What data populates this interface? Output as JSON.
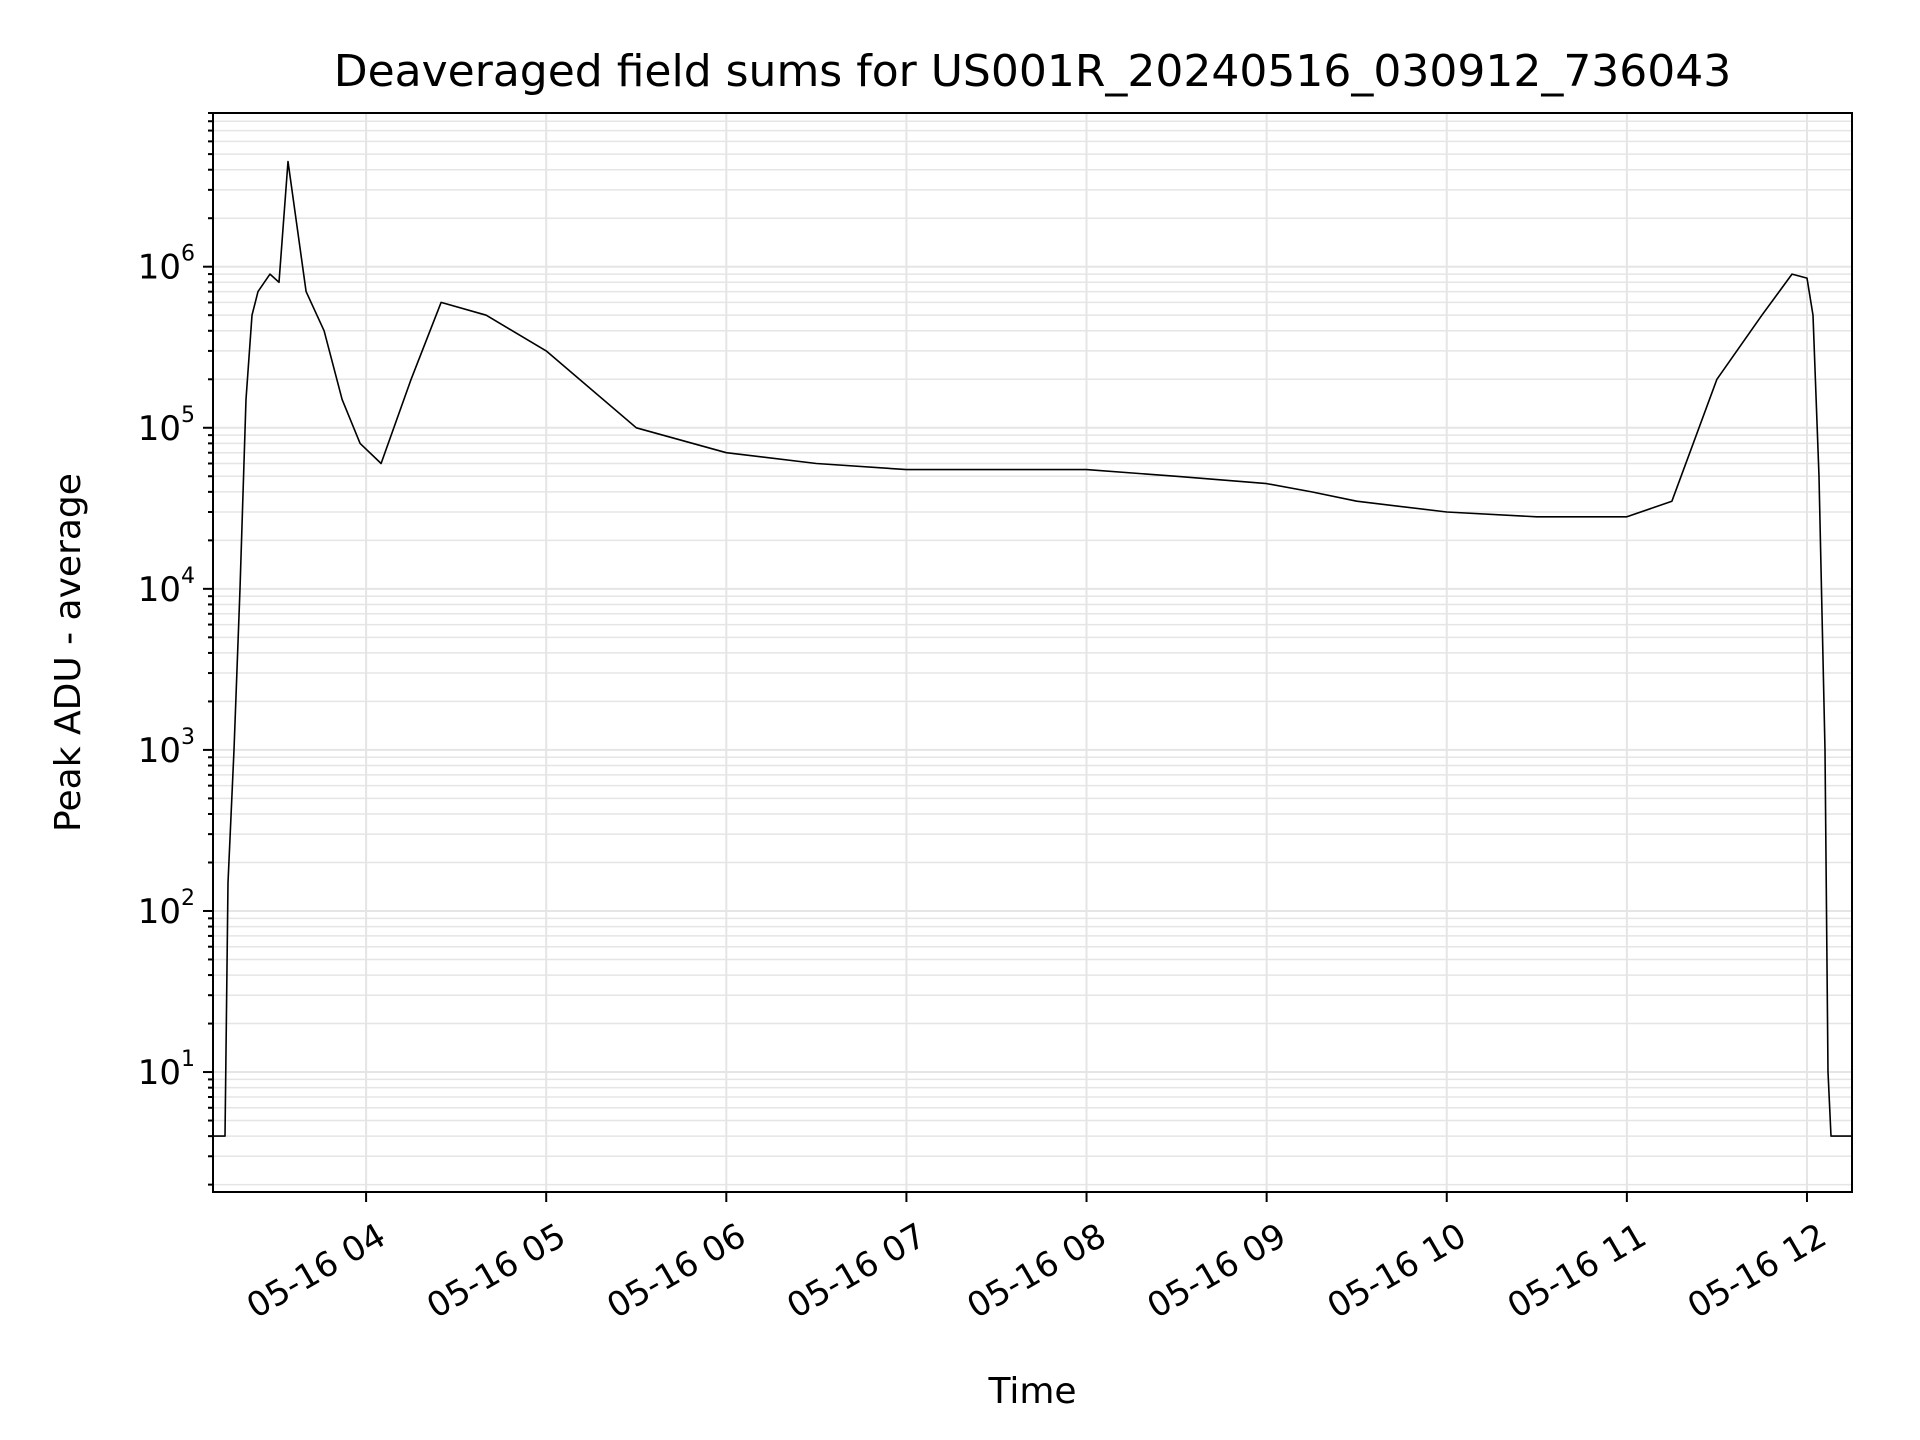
{
  "chart_data": {
    "type": "line",
    "title": "Deaveraged field sums for US001R_20240516_030912_736043",
    "xlabel": "Time",
    "ylabel": "Peak ADU - average",
    "y_scale": "log",
    "ylim": [
      1.8,
      9000000
    ],
    "xlim": [
      "05-16 03:09",
      "05-16 12:15"
    ],
    "x_ticks": [
      "05-16 04",
      "05-16 05",
      "05-16 06",
      "05-16 07",
      "05-16 08",
      "05-16 09",
      "05-16 10",
      "05-16 11",
      "05-16 12"
    ],
    "y_ticks": [
      {
        "base": "10",
        "exp": "1",
        "value": 10
      },
      {
        "base": "10",
        "exp": "2",
        "value": 100
      },
      {
        "base": "10",
        "exp": "3",
        "value": 1000
      },
      {
        "base": "10",
        "exp": "4",
        "value": 10000
      },
      {
        "base": "10",
        "exp": "5",
        "value": 100000
      },
      {
        "base": "10",
        "exp": "6",
        "value": 1000000
      }
    ],
    "grid": "major and minor",
    "line_color": "#000000",
    "grid_color": "#e5e5e5",
    "series": [
      {
        "x": [
          "05-16 03:09",
          "05-16 03:13",
          "05-16 03:14",
          "05-16 03:16",
          "05-16 03:18",
          "05-16 03:20",
          "05-16 03:22",
          "05-16 03:24",
          "05-16 03:28",
          "05-16 03:31",
          "05-16 03:34",
          "05-16 03:40",
          "05-16 03:46",
          "05-16 03:52",
          "05-16 03:58",
          "05-16 04:05",
          "05-16 04:15",
          "05-16 04:25",
          "05-16 04:40",
          "05-16 05:00",
          "05-16 05:30",
          "05-16 06:00",
          "05-16 06:30",
          "05-16 07:00",
          "05-16 07:30",
          "05-16 08:00",
          "05-16 08:30",
          "05-16 09:00",
          "05-16 09:15",
          "05-16 09:30",
          "05-16 10:00",
          "05-16 10:30",
          "05-16 11:00",
          "05-16 11:15",
          "05-16 11:30",
          "05-16 11:45",
          "05-16 11:55",
          "05-16 12:00",
          "05-16 12:02",
          "05-16 12:04",
          "05-16 12:06",
          "05-16 12:07",
          "05-16 12:08",
          "05-16 12:15"
        ],
        "y": [
          4,
          4,
          150,
          1000,
          10000,
          150000,
          500000,
          700000,
          900000,
          800000,
          4500000,
          700000,
          400000,
          150000,
          80000,
          60000,
          200000,
          600000,
          500000,
          300000,
          100000,
          70000,
          60000,
          55000,
          55000,
          55000,
          50000,
          45000,
          40000,
          35000,
          30000,
          28000,
          28000,
          35000,
          200000,
          500000,
          900000,
          850000,
          500000,
          50000,
          1000,
          10,
          4,
          4
        ]
      }
    ]
  }
}
